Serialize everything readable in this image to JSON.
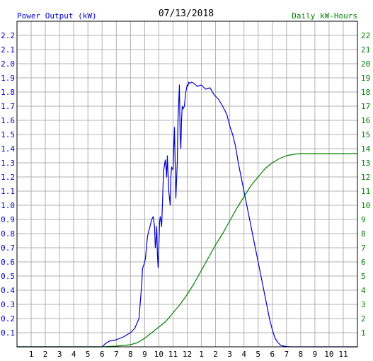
{
  "chart_data": {
    "type": "line",
    "title": "07/13/2018",
    "left_axis_label": "Power Output (kW)",
    "right_axis_label": "Daily kW-Hours",
    "x_ticks": [
      "1",
      "2",
      "3",
      "4",
      "5",
      "6",
      "7",
      "8",
      "9",
      "10",
      "11",
      "12",
      "1",
      "2",
      "3",
      "4",
      "5",
      "6",
      "7",
      "8",
      "9",
      "10",
      "11"
    ],
    "x_range_hours": [
      0,
      24
    ],
    "left_ylim": [
      0,
      2.3
    ],
    "left_ticks": [
      "0.1",
      "0.2",
      "0.3",
      "0.4",
      "0.5",
      "0.6",
      "0.7",
      "0.8",
      "0.9",
      "1.0",
      "1.1",
      "1.2",
      "1.3",
      "1.4",
      "1.5",
      "1.6",
      "1.7",
      "1.8",
      "1.9",
      "2.0",
      "2.1",
      "2.2"
    ],
    "right_ylim": [
      0,
      23
    ],
    "right_ticks": [
      "1",
      "2",
      "3",
      "4",
      "5",
      "6",
      "7",
      "8",
      "9",
      "10",
      "11",
      "12",
      "13",
      "14",
      "15",
      "16",
      "17",
      "18",
      "19",
      "20",
      "21",
      "22"
    ],
    "grid": true,
    "colors": {
      "power": "#0000cc",
      "energy": "#008000",
      "left_text": "#0000cc",
      "right_text": "#008000",
      "grid": "#b0b0b0"
    },
    "series": [
      {
        "axis": "left",
        "x": [
          0,
          6,
          6.2,
          6.5,
          7,
          7.5,
          8,
          8.3,
          8.6,
          8.8,
          8.85,
          8.9,
          8.95,
          9.05,
          9.2,
          9.4,
          9.5,
          9.6,
          9.7,
          9.75,
          9.8,
          9.85,
          9.9,
          9.95,
          10.0,
          10.05,
          10.1,
          10.2,
          10.25,
          10.3,
          10.35,
          10.45,
          10.5,
          10.55,
          10.6,
          10.7,
          10.8,
          10.85,
          10.9,
          11.0,
          11.1,
          11.2,
          11.3,
          11.35,
          11.45,
          11.5,
          11.55,
          11.6,
          11.65,
          11.7,
          11.8,
          11.9,
          12.0,
          12.05,
          12.1,
          12.2,
          12.3,
          12.5,
          12.7,
          13.0,
          13.3,
          13.6,
          13.9,
          14.2,
          14.5,
          14.8,
          15.0,
          15.2,
          15.4,
          15.6,
          15.8,
          16.0,
          16.2,
          16.4,
          16.6,
          16.8,
          17.0,
          17.2,
          17.4,
          17.6,
          17.8,
          18.0,
          18.2,
          18.4,
          18.6,
          18.8,
          19.0,
          19.2,
          19.4,
          19.6,
          19.8,
          20.0,
          20.2,
          20.4,
          20.6,
          21.0,
          24
        ],
        "y": [
          0,
          0,
          0.02,
          0.04,
          0.05,
          0.07,
          0.1,
          0.13,
          0.2,
          0.45,
          0.55,
          0.57,
          0.58,
          0.62,
          0.78,
          0.86,
          0.9,
          0.92,
          0.85,
          0.7,
          0.75,
          0.85,
          0.65,
          0.56,
          0.7,
          0.88,
          0.92,
          0.85,
          1.0,
          1.15,
          1.25,
          1.32,
          1.28,
          1.2,
          1.35,
          1.1,
          1.0,
          1.2,
          1.27,
          1.25,
          1.55,
          1.05,
          1.3,
          1.6,
          1.85,
          1.5,
          1.4,
          1.6,
          1.7,
          1.68,
          1.7,
          1.8,
          1.85,
          1.84,
          1.87,
          1.86,
          1.87,
          1.86,
          1.84,
          1.85,
          1.82,
          1.83,
          1.78,
          1.75,
          1.7,
          1.64,
          1.56,
          1.5,
          1.42,
          1.3,
          1.2,
          1.1,
          1.0,
          0.9,
          0.8,
          0.7,
          0.6,
          0.5,
          0.4,
          0.3,
          0.2,
          0.12,
          0.06,
          0.03,
          0.01,
          0.005,
          0.002,
          0.001,
          0,
          0,
          0,
          0,
          0,
          0,
          0,
          0,
          0
        ]
      },
      {
        "axis": "right",
        "x": [
          0,
          6,
          7,
          7.5,
          8,
          8.5,
          9,
          9.5,
          10,
          10.5,
          11,
          11.5,
          12,
          12.5,
          13,
          13.5,
          14,
          14.5,
          15,
          15.5,
          16,
          16.5,
          17,
          17.5,
          18,
          18.5,
          19,
          19.5,
          20,
          20.5,
          21,
          21.5,
          22,
          24
        ],
        "y": [
          0,
          0,
          0.05,
          0.1,
          0.15,
          0.3,
          0.6,
          1.0,
          1.4,
          1.8,
          2.4,
          3.0,
          3.7,
          4.5,
          5.4,
          6.3,
          7.2,
          8.0,
          8.9,
          9.8,
          10.6,
          11.4,
          12.0,
          12.6,
          13.0,
          13.3,
          13.5,
          13.6,
          13.65,
          13.65,
          13.65,
          13.65,
          13.65,
          13.65
        ]
      }
    ]
  }
}
